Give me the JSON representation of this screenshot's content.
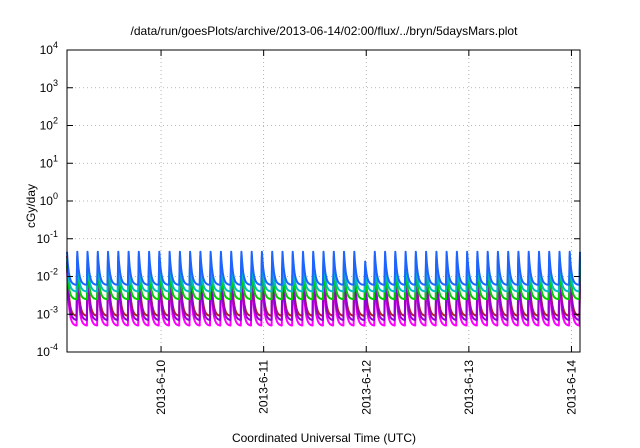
{
  "chart_data": {
    "type": "line",
    "title": "/data/run/goesPlots/archive/2013-06-14/02:00/flux/../bryn/5daysMars.plot",
    "xlabel": "Coordinated Universal Time (UTC)",
    "ylabel": "cGy/day",
    "yscale": "log",
    "ylim": [
      0.0001,
      10000
    ],
    "xlim": [
      "2013-06-09T02:00",
      "2013-06-14T02:00"
    ],
    "y_ticks": [
      {
        "base": "10",
        "exp": "-4",
        "value": 0.0001
      },
      {
        "base": "10",
        "exp": "-3",
        "value": 0.001
      },
      {
        "base": "10",
        "exp": "-2",
        "value": 0.01
      },
      {
        "base": "10",
        "exp": "-1",
        "value": 0.1
      },
      {
        "base": "10",
        "exp": "0",
        "value": 1
      },
      {
        "base": "10",
        "exp": "1",
        "value": 10
      },
      {
        "base": "10",
        "exp": "2",
        "value": 100
      },
      {
        "base": "10",
        "exp": "3",
        "value": 1000
      },
      {
        "base": "10",
        "exp": "4",
        "value": 10000
      }
    ],
    "x_ticks": [
      {
        "label": "2013-6-10",
        "value": "2013-06-10T00:00"
      },
      {
        "label": "2013-6-11",
        "value": "2013-06-11T00:00"
      },
      {
        "label": "2013-6-12",
        "value": "2013-06-12T00:00"
      },
      {
        "label": "2013-6-13",
        "value": "2013-06-13T00:00"
      },
      {
        "label": "2013-6-14",
        "value": "2013-06-14T00:00"
      }
    ],
    "grid": true,
    "cycles_per_day": 10,
    "series": [
      {
        "color": "#ff00ff",
        "peak": 0.018,
        "trough": 0.0005
      },
      {
        "color": "#b22222",
        "peak": 0.035,
        "trough": 0.0009
      },
      {
        "color": "#9400d3",
        "peak": 0.025,
        "trough": 0.0007
      },
      {
        "color": "#00cc00",
        "peak": 0.02,
        "trough": 0.0025
      },
      {
        "color": "#00bfbf",
        "peak": 0.03,
        "trough": 0.004
      },
      {
        "color": "#1e64ff",
        "peak": 0.045,
        "trough": 0.006
      }
    ]
  }
}
